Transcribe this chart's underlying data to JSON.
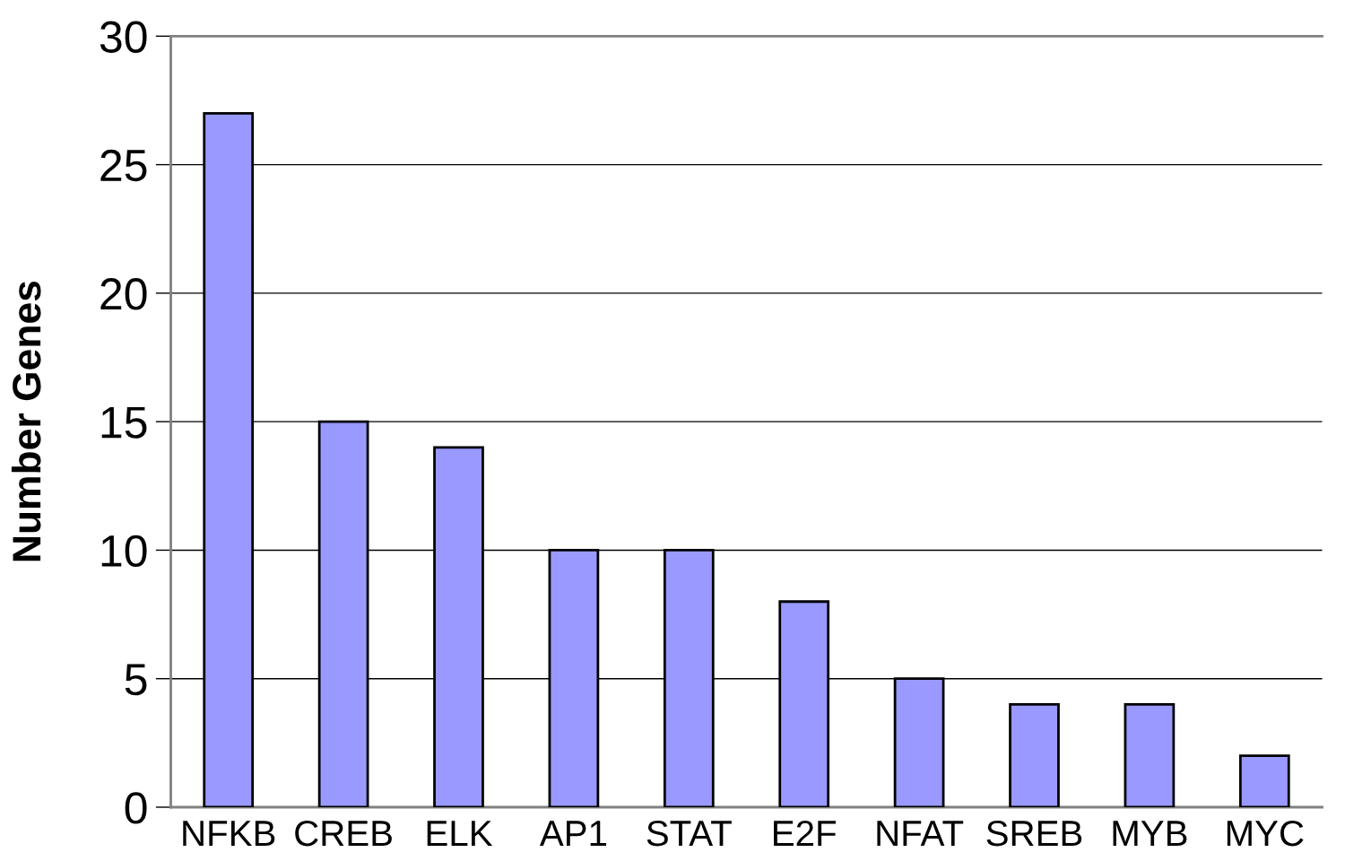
{
  "chart_data": {
    "type": "bar",
    "ylabel": "Number Genes",
    "categories": [
      "NFKB",
      "CREB",
      "ELK",
      "AP1",
      "STAT",
      "E2F",
      "NFAT",
      "SREB",
      "MYB",
      "MYC"
    ],
    "values": [
      27,
      15,
      14,
      10,
      10,
      8,
      5,
      4,
      4,
      2
    ],
    "color": "#9999ff",
    "ylim": [
      0,
      30
    ],
    "yticks": [
      0,
      5,
      10,
      15,
      20,
      25,
      30
    ],
    "grid": "y",
    "legend": false
  }
}
